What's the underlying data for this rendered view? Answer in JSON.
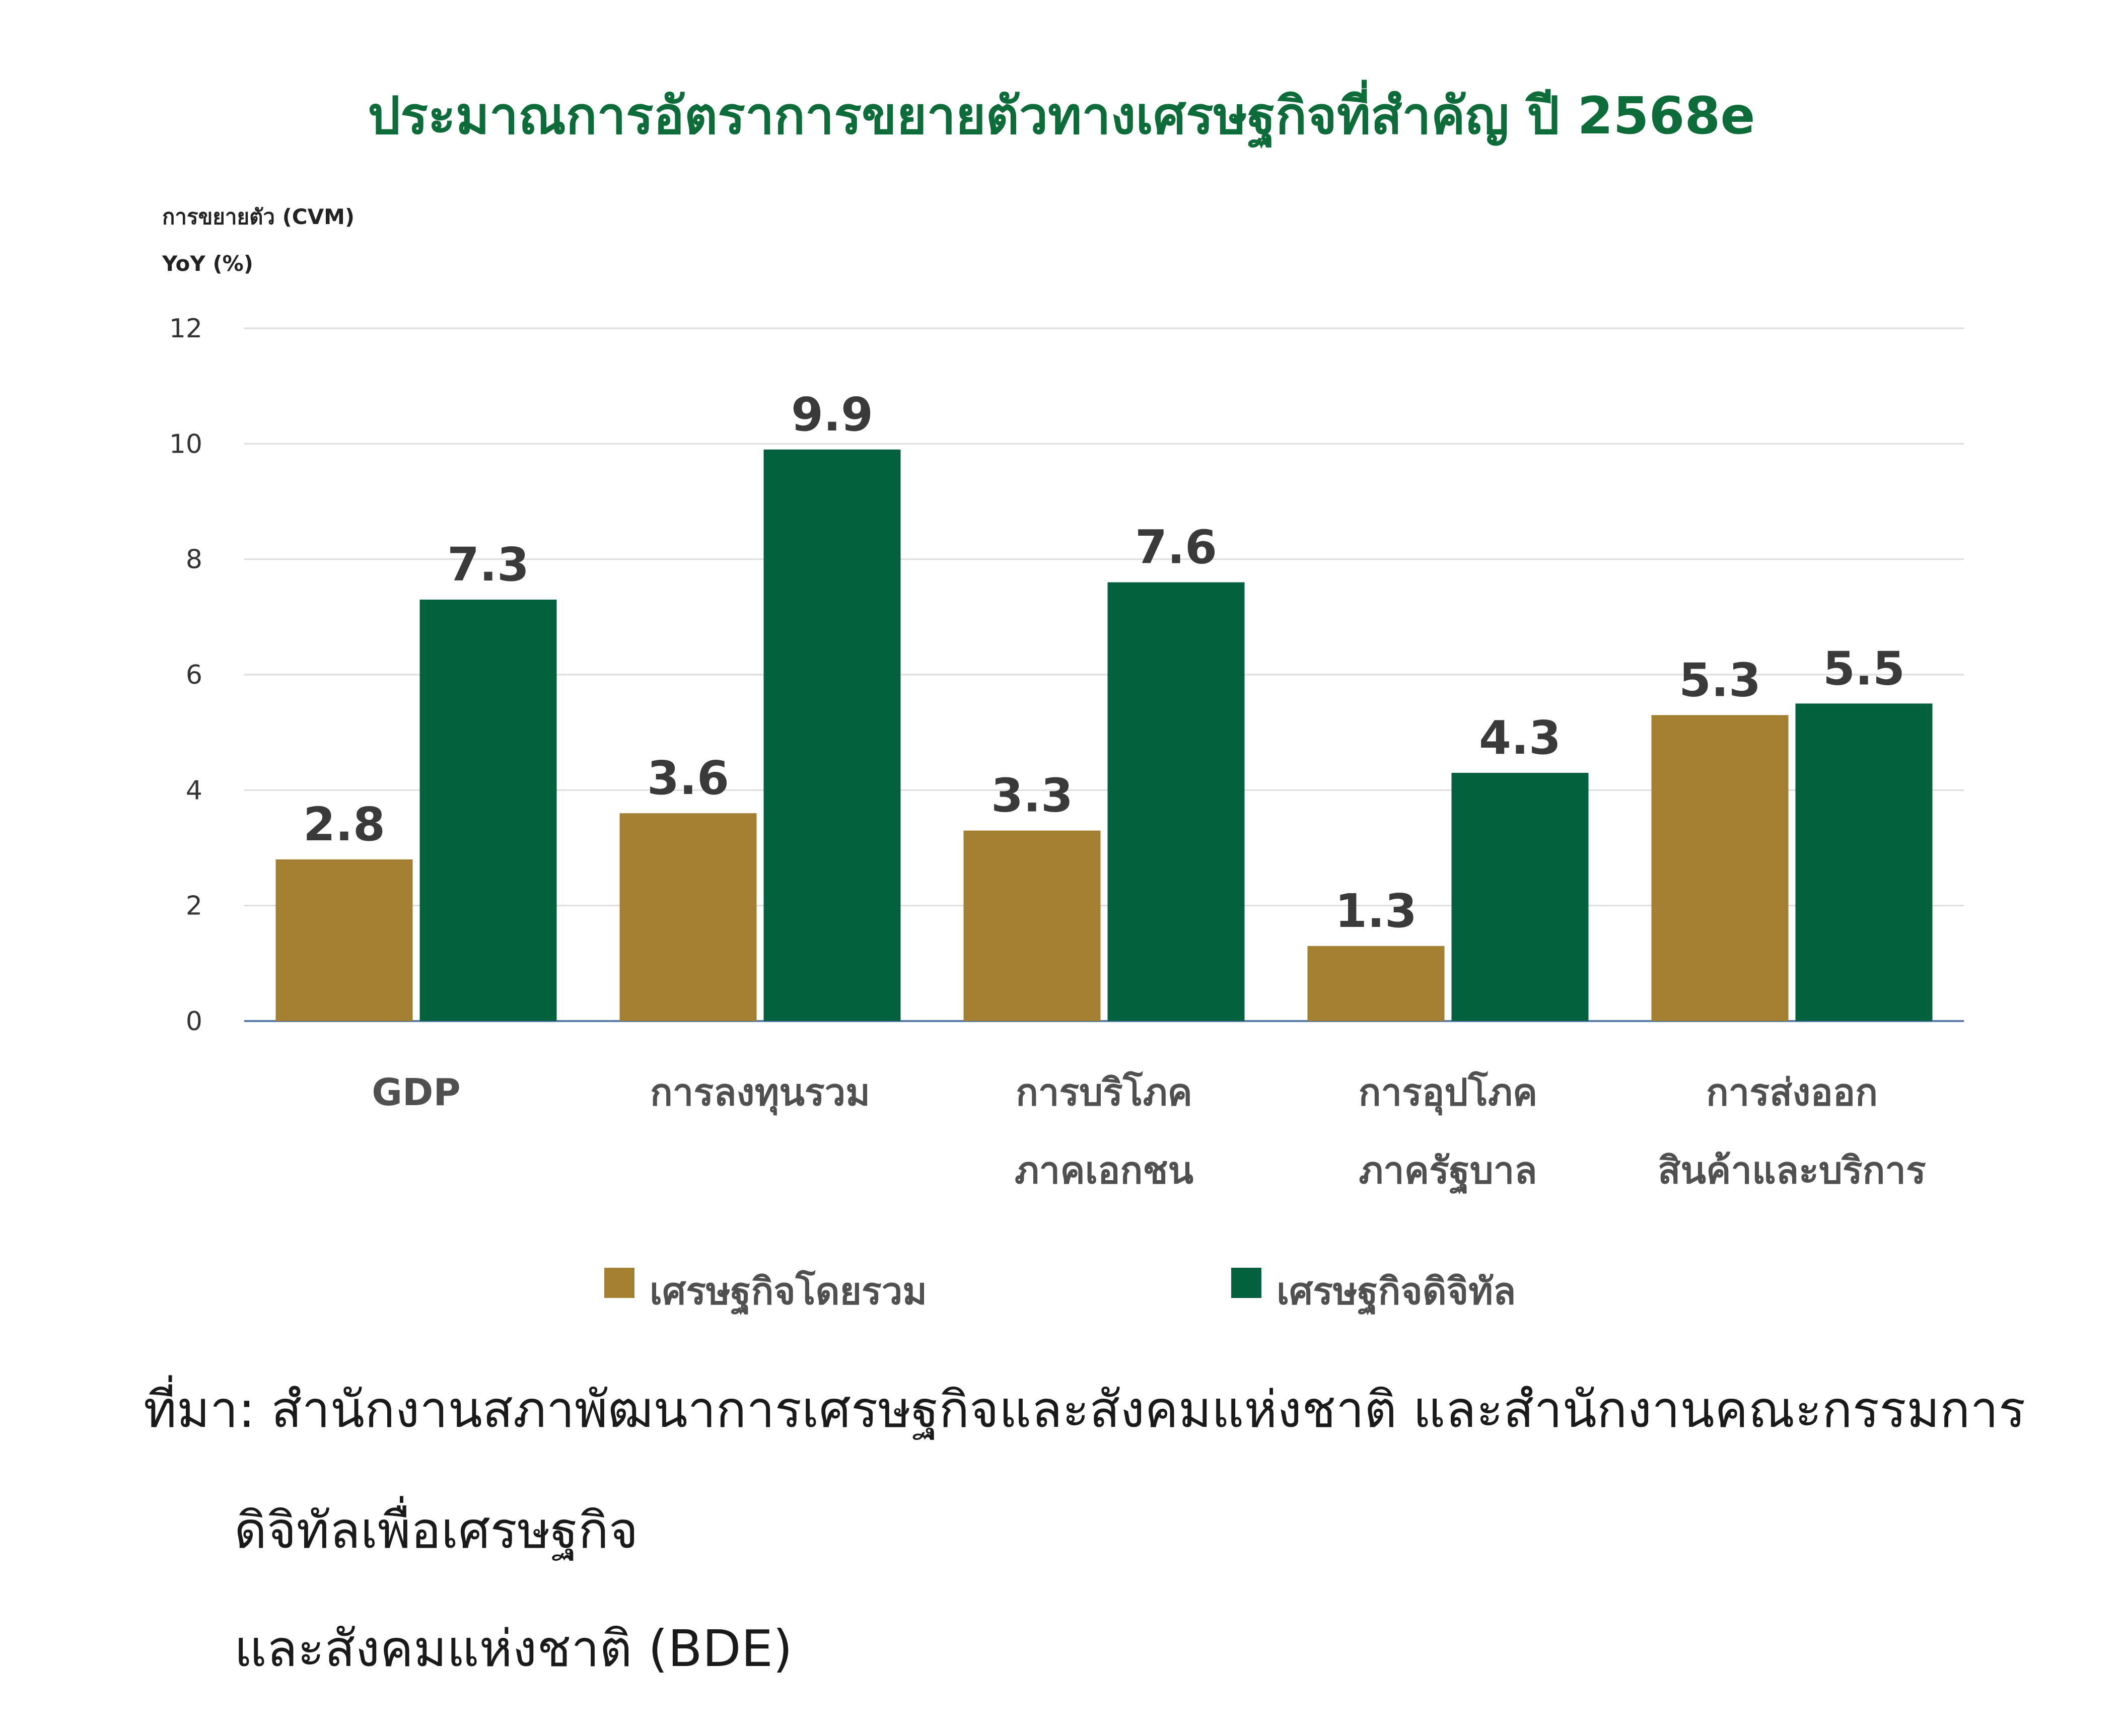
{
  "chart_data": {
    "type": "bar",
    "title": "ประมาณการอัตราการขยายตัวทางเศรษฐกิจที่สำคัญ ปี 2568e",
    "ylabel_line1": "การขยายตัว (CVM)",
    "ylabel_line2": "YoY (%)",
    "xlabel": "",
    "ylim": [
      0,
      12
    ],
    "yticks": [
      0,
      2,
      4,
      6,
      8,
      10,
      12
    ],
    "grid": true,
    "legend_position": "bottom",
    "categories": [
      [
        "GDP"
      ],
      [
        "การลงทุนรวม"
      ],
      [
        "การบริโภค",
        "ภาคเอกชน"
      ],
      [
        "การอุปโภค",
        "ภาครัฐบาล"
      ],
      [
        "การส่งออก",
        "สินค้าและบริการ"
      ]
    ],
    "series": [
      {
        "name": "เศรษฐกิจโดยรวม",
        "color": "#A27F31",
        "values": [
          2.8,
          3.6,
          3.3,
          1.3,
          5.3
        ]
      },
      {
        "name": "เศรษฐกิจดิจิทัล",
        "color": "#046140",
        "values": [
          7.3,
          9.9,
          7.6,
          4.3,
          5.5
        ]
      }
    ],
    "title_color": "#0E6B3A"
  },
  "source": {
    "line1": "ที่มา: สำนักงานสภาพัฒนาการเศรษฐกิจและสังคมแห่งชาติ และสำนักงานคณะกรรมการ",
    "line2": "ดิจิทัลเพื่อเศรษฐกิจ",
    "line3": "และสังคมแห่งชาติ (BDE)"
  }
}
